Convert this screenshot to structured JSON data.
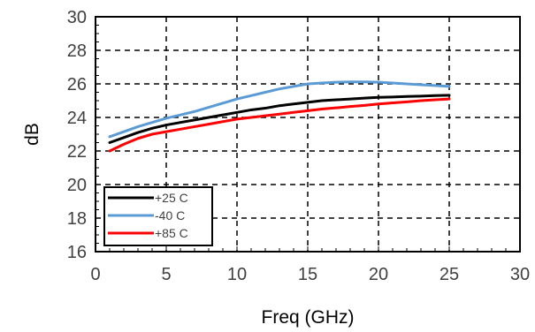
{
  "chart_data": {
    "type": "line",
    "xlabel": "Freq (GHz)",
    "ylabel": "dB",
    "xlim": [
      0,
      30
    ],
    "ylim": [
      16,
      30
    ],
    "xticks": [
      0,
      5,
      10,
      15,
      20,
      25,
      30
    ],
    "yticks": [
      16,
      18,
      20,
      22,
      24,
      26,
      28,
      30
    ],
    "grid": true,
    "legend_position": "bottom-left",
    "series": [
      {
        "name": "+25 C",
        "color": "#000000",
        "x": [
          1,
          2,
          3,
          4,
          5,
          6,
          7,
          8,
          9,
          10,
          11,
          12,
          13,
          14,
          15,
          16,
          17,
          18,
          19,
          20,
          21,
          22,
          23,
          24,
          25
        ],
        "y": [
          22.5,
          22.8,
          23.1,
          23.35,
          23.55,
          23.7,
          23.85,
          24.0,
          24.15,
          24.3,
          24.45,
          24.55,
          24.7,
          24.8,
          24.9,
          25.0,
          25.05,
          25.1,
          25.15,
          25.2,
          25.22,
          25.25,
          25.27,
          25.3,
          25.32
        ]
      },
      {
        "name": "-40 C",
        "color": "#5b9bd5",
        "x": [
          1,
          2,
          3,
          4,
          5,
          6,
          7,
          8,
          9,
          10,
          11,
          12,
          13,
          14,
          15,
          16,
          17,
          18,
          19,
          20,
          21,
          22,
          23,
          24,
          25
        ],
        "y": [
          22.85,
          23.15,
          23.45,
          23.7,
          23.95,
          24.15,
          24.35,
          24.6,
          24.85,
          25.1,
          25.3,
          25.5,
          25.7,
          25.85,
          26.0,
          26.05,
          26.1,
          26.12,
          26.12,
          26.1,
          26.05,
          26.0,
          25.95,
          25.9,
          25.85
        ]
      },
      {
        "name": "+85 C",
        "color": "#ff0000",
        "x": [
          1,
          2,
          3,
          4,
          5,
          6,
          7,
          8,
          9,
          10,
          11,
          12,
          13,
          14,
          15,
          16,
          17,
          18,
          19,
          20,
          21,
          22,
          23,
          24,
          25
        ],
        "y": [
          22.0,
          22.4,
          22.75,
          23.0,
          23.15,
          23.3,
          23.45,
          23.6,
          23.75,
          23.9,
          24.0,
          24.1,
          24.2,
          24.3,
          24.4,
          24.5,
          24.57,
          24.65,
          24.72,
          24.8,
          24.87,
          24.93,
          25.0,
          25.05,
          25.1
        ]
      }
    ]
  }
}
